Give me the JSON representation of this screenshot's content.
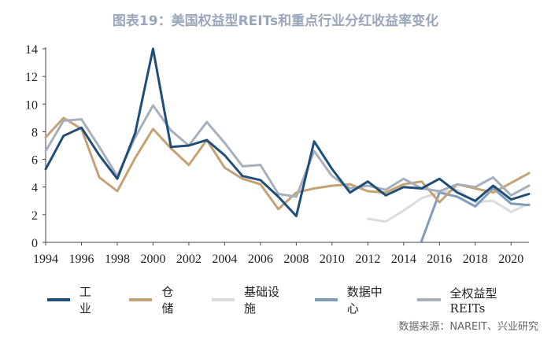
{
  "title": "图表19：美国权益型REITs和重点行业分红收益率变化",
  "source": "数据来源：NAREIT、兴业研究",
  "colors": {
    "title": "#9aa7bb",
    "axis": "#444444",
    "工业": "#1f4e79",
    "仓储": "#c4a274",
    "基础设施": "#dcdcdc",
    "数据中心": "#7f9db9",
    "全权益型REITs": "#a6afbc"
  },
  "chart_data": {
    "type": "line",
    "title": "图表19：美国权益型REITs和重点行业分红收益率变化",
    "xlabel": "",
    "ylabel": "",
    "xlim": [
      1994,
      2021
    ],
    "ylim": [
      0,
      14
    ],
    "x_ticks": [
      "1994",
      "1996",
      "1998",
      "2000",
      "2002",
      "2004",
      "2006",
      "2008",
      "2010",
      "2012",
      "2014",
      "2016",
      "2018",
      "2020"
    ],
    "y_ticks": [
      "0",
      "2",
      "4",
      "6",
      "8",
      "10",
      "12",
      "14"
    ],
    "grid": false,
    "legend_position": "bottom",
    "series": [
      {
        "name": "工业",
        "points": [
          [
            1994,
            5.3
          ],
          [
            1995,
            7.7
          ],
          [
            1996,
            8.3
          ],
          [
            1997,
            6.3
          ],
          [
            1998,
            4.6
          ],
          [
            1999,
            7.9
          ],
          [
            2000,
            14
          ],
          [
            2001,
            6.9
          ],
          [
            2002,
            7.0
          ],
          [
            2003,
            7.4
          ],
          [
            2004,
            6.3
          ],
          [
            2005,
            4.8
          ],
          [
            2006,
            4.5
          ],
          [
            2007,
            3.3
          ],
          [
            2008,
            1.9
          ],
          [
            2009,
            7.3
          ],
          [
            2010,
            5.3
          ],
          [
            2011,
            3.6
          ],
          [
            2012,
            4.4
          ],
          [
            2013,
            3.4
          ],
          [
            2014,
            4.0
          ],
          [
            2015,
            3.9
          ],
          [
            2016,
            4.6
          ],
          [
            2017,
            3.6
          ],
          [
            2018,
            3.0
          ],
          [
            2019,
            4.1
          ],
          [
            2020,
            3.1
          ],
          [
            2021,
            3.5
          ]
        ]
      },
      {
        "name": "仓储",
        "points": [
          [
            1994,
            7.6
          ],
          [
            1995,
            9.0
          ],
          [
            1996,
            8.2
          ],
          [
            1997,
            4.7
          ],
          [
            1998,
            3.7
          ],
          [
            1999,
            6.1
          ],
          [
            2000,
            8.2
          ],
          [
            2001,
            6.8
          ],
          [
            2002,
            5.6
          ],
          [
            2003,
            7.4
          ],
          [
            2004,
            5.4
          ],
          [
            2005,
            4.6
          ],
          [
            2006,
            4.2
          ],
          [
            2007,
            2.4
          ],
          [
            2008,
            3.6
          ],
          [
            2009,
            3.9
          ],
          [
            2010,
            4.1
          ],
          [
            2011,
            4.2
          ],
          [
            2012,
            3.7
          ],
          [
            2013,
            3.6
          ],
          [
            2014,
            4.2
          ],
          [
            2015,
            4.4
          ],
          [
            2016,
            2.9
          ],
          [
            2017,
            4.2
          ],
          [
            2018,
            3.9
          ],
          [
            2019,
            3.6
          ],
          [
            2020,
            4.3
          ],
          [
            2021,
            5.0
          ]
        ]
      },
      {
        "name": "基础设施",
        "points": [
          [
            2012,
            1.7
          ],
          [
            2013,
            1.5
          ],
          [
            2014,
            2.3
          ],
          [
            2015,
            3.2
          ],
          [
            2016,
            3.6
          ],
          [
            2017,
            3.8
          ],
          [
            2018,
            2.9
          ],
          [
            2019,
            3.0
          ],
          [
            2020,
            2.2
          ],
          [
            2021,
            2.8
          ]
        ]
      },
      {
        "name": "数据中心",
        "points": [
          [
            2015,
            0.1
          ],
          [
            2016,
            3.6
          ],
          [
            2017,
            3.3
          ],
          [
            2018,
            2.6
          ],
          [
            2019,
            3.9
          ],
          [
            2020,
            2.8
          ],
          [
            2021,
            2.7
          ]
        ]
      },
      {
        "name": "全权益型REITs",
        "points": [
          [
            1994,
            6.6
          ],
          [
            1995,
            8.8
          ],
          [
            1996,
            8.9
          ],
          [
            1997,
            6.9
          ],
          [
            1998,
            4.8
          ],
          [
            1999,
            7.6
          ],
          [
            2000,
            9.9
          ],
          [
            2001,
            8.1
          ],
          [
            2002,
            7.0
          ],
          [
            2003,
            8.7
          ],
          [
            2004,
            7.2
          ],
          [
            2005,
            5.5
          ],
          [
            2006,
            5.6
          ],
          [
            2007,
            3.5
          ],
          [
            2008,
            3.3
          ],
          [
            2009,
            6.6
          ],
          [
            2010,
            4.8
          ],
          [
            2011,
            3.9
          ],
          [
            2012,
            4.1
          ],
          [
            2013,
            3.8
          ],
          [
            2014,
            4.6
          ],
          [
            2015,
            3.9
          ],
          [
            2016,
            3.7
          ],
          [
            2017,
            4.2
          ],
          [
            2018,
            4.0
          ],
          [
            2019,
            4.7
          ],
          [
            2020,
            3.4
          ],
          [
            2021,
            4.1
          ]
        ]
      }
    ]
  }
}
